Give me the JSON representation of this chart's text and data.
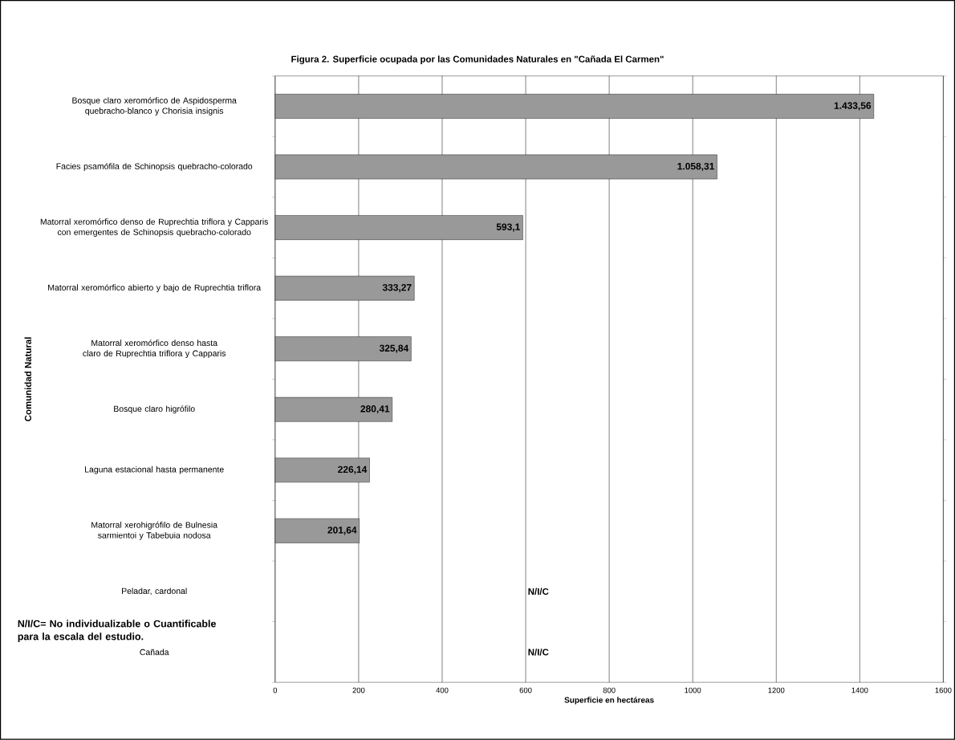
{
  "chart_data": {
    "type": "bar",
    "orientation": "horizontal",
    "title": "**Figura 2.** Superficie ocupada por las Comunidades Naturales en \"Cañada El Carmen\"",
    "xlabel": "Superficie en hectáreas",
    "ylabel": "Comunidad Natural",
    "categories": [
      "Bosque claro xeromórfico de Aspidosperma quebracho-blanco y Chorisia insignis",
      "Facies psamófila de Schinopsis quebracho-colorado",
      "Matorral xeromórfico denso de Ruprechtia triflora y Capparis con emergentes de Schinopsis quebracho-colorado",
      "Matorral xeromórfico abierto y bajo de Ruprechtia triflora",
      "Matorral xeromórfico denso hasta claro de Ruprechtia triflora y Capparis",
      "Bosque claro higrófilo",
      "Laguna estacional hasta permanente",
      "Matorral xerohigrófilo de Bulnesia sarmientoi y Tabebuia nodosa",
      "Peladar, cardonal",
      "Cañada"
    ],
    "values": [
      1433.56,
      1058.31,
      593.1,
      333.27,
      325.84,
      280.41,
      226.14,
      201.64,
      null,
      null
    ],
    "value_labels": [
      "1.433,56",
      "1.058,31",
      "593,1",
      "333,27",
      "325,84",
      "280,41",
      "226,14",
      "201,64",
      "N/I/C",
      "N/I/C"
    ],
    "color": "#999999",
    "xlim": [
      0,
      1600
    ],
    "xticks": [
      0,
      200,
      400,
      600,
      800,
      1000,
      1200,
      1400,
      1600
    ],
    "grid": "x",
    "annotations": [
      "N/I/C= No individualizable o Cuantificable para la escala del estudio."
    ]
  }
}
